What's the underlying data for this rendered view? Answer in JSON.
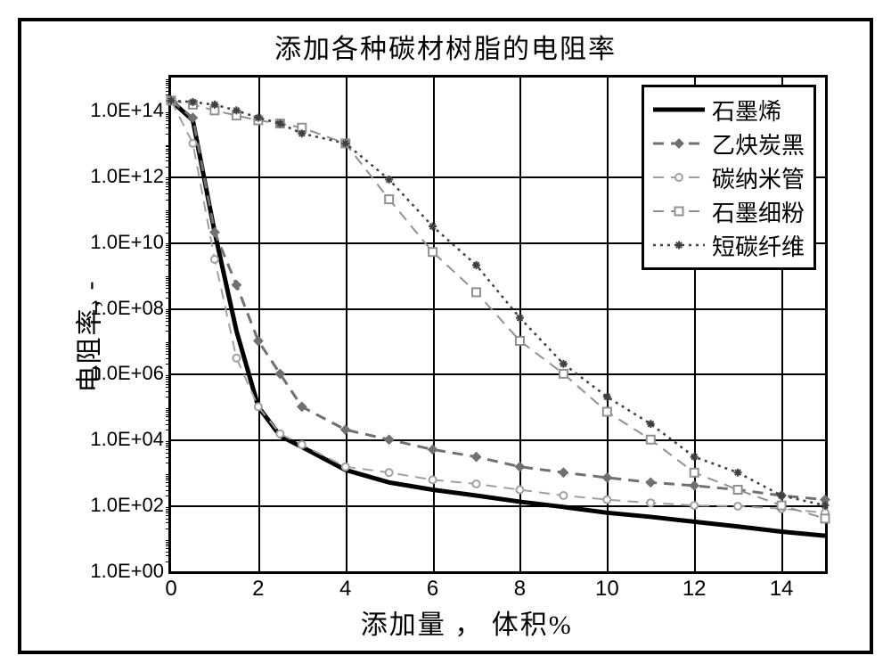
{
  "chart": {
    "type": "line",
    "title": "添加各种碳材树脂的电阻率",
    "xlabel": "添加量 ， 体积%",
    "ylabel": "电阻率, -",
    "title_fontsize": 30,
    "label_fontsize": 30,
    "tick_fontsize": 22,
    "legend_fontsize": 26,
    "background_color": "#ffffff",
    "grid_color": "#000000",
    "border_color": "#000000",
    "xlim": [
      0,
      15
    ],
    "xtick_step": 2,
    "xticks": [
      0,
      2,
      4,
      6,
      8,
      10,
      12,
      14
    ],
    "ylim": [
      1,
      1000000000000000.0
    ],
    "yscale": "log",
    "yticks": [
      1,
      100,
      10000,
      1000000,
      100000000,
      10000000000,
      1000000000000,
      100000000000000
    ],
    "ytick_labels": [
      "1.0E+00",
      "1.0E+02",
      "1.0E+04",
      "1.0E+06",
      "1.0E+08",
      "1.0E+10",
      "1.0E+12",
      "1.0E+14"
    ],
    "series": [
      {
        "name": "石墨烯",
        "color": "#000000",
        "line_style": "solid",
        "line_width": 5,
        "marker": "none",
        "data": [
          {
            "x": 0,
            "y": 200000000000000.0
          },
          {
            "x": 0.5,
            "y": 50000000000000.0
          },
          {
            "x": 1,
            "y": 20000000000.0
          },
          {
            "x": 1.5,
            "y": 20000000.0
          },
          {
            "x": 2,
            "y": 100000.0
          },
          {
            "x": 2.5,
            "y": 13000.0
          },
          {
            "x": 3,
            "y": 6000.0
          },
          {
            "x": 4,
            "y": 1200.0
          },
          {
            "x": 5,
            "y": 500.0
          },
          {
            "x": 6,
            "y": 300.0
          },
          {
            "x": 7,
            "y": 200.0
          },
          {
            "x": 8,
            "y": 130.0
          },
          {
            "x": 9,
            "y": 90.0
          },
          {
            "x": 10,
            "y": 60.0
          },
          {
            "x": 11,
            "y": 45.0
          },
          {
            "x": 12,
            "y": 32.0
          },
          {
            "x": 13,
            "y": 23.0
          },
          {
            "x": 14,
            "y": 16.0
          },
          {
            "x": 15,
            "y": 12.0
          }
        ]
      },
      {
        "name": "乙炔炭黑",
        "color": "#707070",
        "line_style": "dashed",
        "line_width": 3,
        "marker": "diamond",
        "marker_fill": "#707070",
        "marker_size": 9,
        "data": [
          {
            "x": 0,
            "y": 200000000000000.0
          },
          {
            "x": 0.5,
            "y": 60000000000000.0
          },
          {
            "x": 1,
            "y": 20000000000.0
          },
          {
            "x": 1.5,
            "y": 500000000.0
          },
          {
            "x": 2,
            "y": 10000000.0
          },
          {
            "x": 2.5,
            "y": 1000000.0
          },
          {
            "x": 3,
            "y": 100000.0
          },
          {
            "x": 4,
            "y": 20000.0
          },
          {
            "x": 5,
            "y": 10000.0
          },
          {
            "x": 6,
            "y": 5000.0
          },
          {
            "x": 7,
            "y": 3000.0
          },
          {
            "x": 8,
            "y": 1500.0
          },
          {
            "x": 9,
            "y": 1000.0
          },
          {
            "x": 10,
            "y": 700.0
          },
          {
            "x": 11,
            "y": 500.0
          },
          {
            "x": 12,
            "y": 400.0
          },
          {
            "x": 13,
            "y": 300.0
          },
          {
            "x": 14,
            "y": 200.0
          },
          {
            "x": 15,
            "y": 150.0
          }
        ]
      },
      {
        "name": "碳纳米管",
        "color": "#a0a0a0",
        "line_style": "dashed",
        "line_width": 2,
        "marker": "circle",
        "marker_fill": "#ffffff",
        "marker_size": 8,
        "data": [
          {
            "x": 0,
            "y": 200000000000000.0
          },
          {
            "x": 0.5,
            "y": 10000000000000.0
          },
          {
            "x": 1,
            "y": 3000000000.0
          },
          {
            "x": 1.5,
            "y": 3000000.0
          },
          {
            "x": 2,
            "y": 100000.0
          },
          {
            "x": 2.5,
            "y": 15000.0
          },
          {
            "x": 3,
            "y": 7000.0
          },
          {
            "x": 4,
            "y": 1500.0
          },
          {
            "x": 5,
            "y": 1000.0
          },
          {
            "x": 6,
            "y": 600.0
          },
          {
            "x": 7,
            "y": 450.0
          },
          {
            "x": 8,
            "y": 300.0
          },
          {
            "x": 9,
            "y": 200.0
          },
          {
            "x": 10,
            "y": 150.0
          },
          {
            "x": 11,
            "y": 120.0
          },
          {
            "x": 12,
            "y": 100.0
          },
          {
            "x": 13,
            "y": 95.0
          },
          {
            "x": 14,
            "y": 80.0
          },
          {
            "x": 15,
            "y": 60.0
          }
        ]
      },
      {
        "name": "石墨细粉",
        "color": "#909090",
        "line_style": "dashed",
        "line_width": 2,
        "marker": "square",
        "marker_fill": "#ffffff",
        "marker_size": 9,
        "data": [
          {
            "x": 0,
            "y": 200000000000000.0
          },
          {
            "x": 0.5,
            "y": 150000000000000.0
          },
          {
            "x": 1,
            "y": 100000000000000.0
          },
          {
            "x": 1.5,
            "y": 70000000000000.0
          },
          {
            "x": 2,
            "y": 50000000000000.0
          },
          {
            "x": 2.5,
            "y": 40000000000000.0
          },
          {
            "x": 3,
            "y": 30000000000000.0
          },
          {
            "x": 4,
            "y": 10000000000000.0
          },
          {
            "x": 5,
            "y": 200000000000.0
          },
          {
            "x": 6,
            "y": 5000000000.0
          },
          {
            "x": 7,
            "y": 300000000.0
          },
          {
            "x": 8,
            "y": 10000000.0
          },
          {
            "x": 9,
            "y": 1000000.0
          },
          {
            "x": 10,
            "y": 70000.0
          },
          {
            "x": 11,
            "y": 10000.0
          },
          {
            "x": 12,
            "y": 1000.0
          },
          {
            "x": 13,
            "y": 300.0
          },
          {
            "x": 14,
            "y": 100.0
          },
          {
            "x": 15,
            "y": 40.0
          }
        ]
      },
      {
        "name": "短碳纤维",
        "color": "#404040",
        "line_style": "dotted",
        "line_width": 2.5,
        "marker": "star",
        "marker_fill": "#404040",
        "marker_size": 9,
        "data": [
          {
            "x": 0,
            "y": 200000000000000.0
          },
          {
            "x": 0.5,
            "y": 180000000000000.0
          },
          {
            "x": 1,
            "y": 150000000000000.0
          },
          {
            "x": 1.5,
            "y": 100000000000000.0
          },
          {
            "x": 2,
            "y": 60000000000000.0
          },
          {
            "x": 2.5,
            "y": 40000000000000.0
          },
          {
            "x": 3,
            "y": 20000000000000.0
          },
          {
            "x": 4,
            "y": 10000000000000.0
          },
          {
            "x": 5,
            "y": 800000000000.0
          },
          {
            "x": 6,
            "y": 30000000000.0
          },
          {
            "x": 7,
            "y": 2000000000.0
          },
          {
            "x": 8,
            "y": 50000000.0
          },
          {
            "x": 9,
            "y": 2000000.0
          },
          {
            "x": 10,
            "y": 200000.0
          },
          {
            "x": 11,
            "y": 30000.0
          },
          {
            "x": 12,
            "y": 3000.0
          },
          {
            "x": 13,
            "y": 1000.0
          },
          {
            "x": 14,
            "y": 200.0
          },
          {
            "x": 15,
            "y": 100.0
          }
        ]
      }
    ],
    "legend_position": "top-right"
  }
}
